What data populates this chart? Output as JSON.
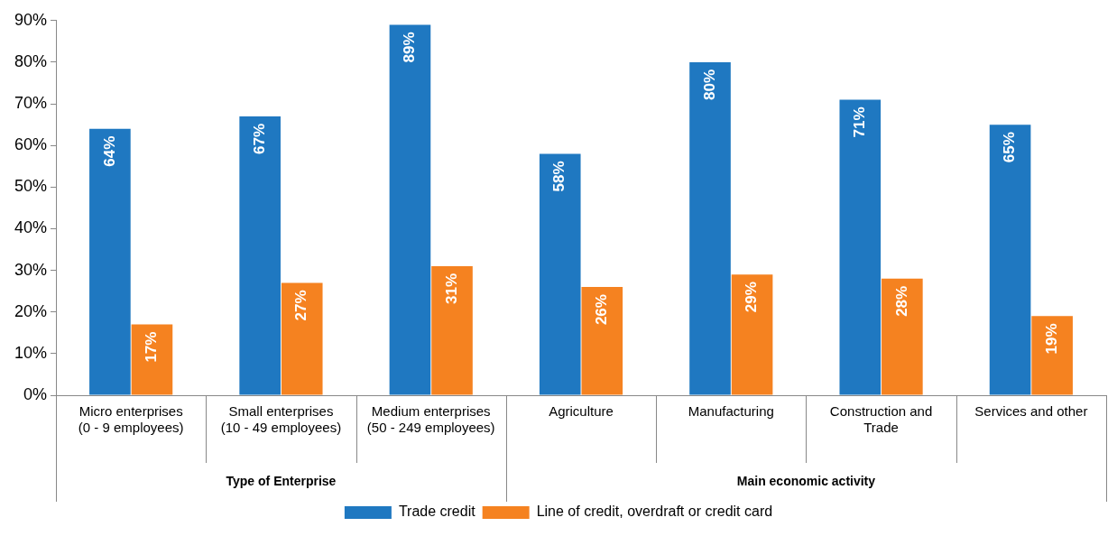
{
  "chart_data": {
    "type": "bar",
    "categories": [
      "Micro enterprises\n(0 - 9 employees)",
      "Small enterprises\n(10 - 49 employees)",
      "Medium enterprises\n(50 - 249 employees)",
      "Agriculture",
      "Manufacturing",
      "Construction and\nTrade",
      "Services and other"
    ],
    "series": [
      {
        "name": "Trade credit",
        "color": "#1f78c1",
        "values": [
          64,
          67,
          89,
          58,
          80,
          71,
          65
        ],
        "value_labels": [
          "64%",
          "67%",
          "89%",
          "58%",
          "80%",
          "71%",
          "65%"
        ]
      },
      {
        "name": "Line of credit, overdraft or credit card",
        "color": "#f58220",
        "values": [
          17,
          27,
          31,
          26,
          29,
          28,
          19
        ],
        "value_labels": [
          "17%",
          "27%",
          "31%",
          "26%",
          "29%",
          "28%",
          "19%"
        ]
      }
    ],
    "ylim": [
      0,
      90
    ],
    "yticks": [
      {
        "value": 0,
        "label": "0%"
      },
      {
        "value": 10,
        "label": "10%"
      },
      {
        "value": 20,
        "label": "20%"
      },
      {
        "value": 30,
        "label": "30%"
      },
      {
        "value": 40,
        "label": "40%"
      },
      {
        "value": 50,
        "label": "50%"
      },
      {
        "value": 60,
        "label": "60%"
      },
      {
        "value": 70,
        "label": "70%"
      },
      {
        "value": 80,
        "label": "80%"
      },
      {
        "value": 90,
        "label": "90%"
      }
    ],
    "annotations": [
      "Type of Enterprise",
      "Main economic activity"
    ],
    "grid": false,
    "legend": "bottom"
  }
}
